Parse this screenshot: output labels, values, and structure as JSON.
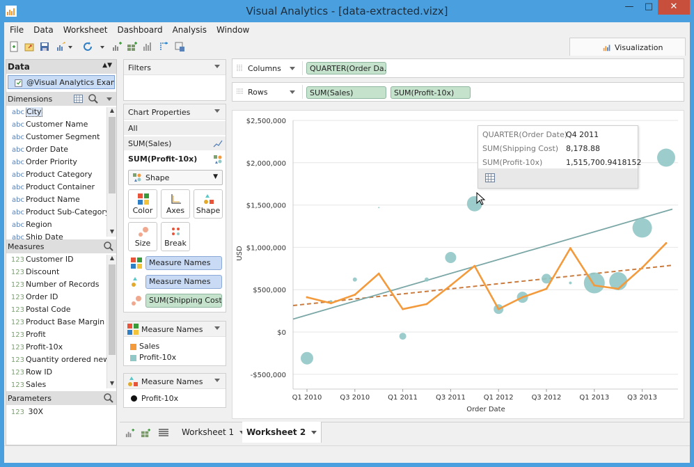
{
  "window": {
    "title": "Visual Analytics - [data-extracted.vizx]"
  },
  "menu": [
    "File",
    "Data",
    "Worksheet",
    "Dashboard",
    "Analysis",
    "Window"
  ],
  "visualization_tab": "Visualization",
  "data_panel": {
    "header": "Data",
    "source": "@Visual Analytics Exam...",
    "dimensions_label": "Dimensions",
    "dimensions": [
      {
        "type": "abc",
        "name": "City"
      },
      {
        "type": "abc",
        "name": "Customer Name"
      },
      {
        "type": "abc",
        "name": "Customer Segment"
      },
      {
        "type": "abc",
        "name": "Order Date"
      },
      {
        "type": "abc",
        "name": "Order Priority"
      },
      {
        "type": "abc",
        "name": "Product Category"
      },
      {
        "type": "abc",
        "name": "Product Container"
      },
      {
        "type": "abc",
        "name": "Product Name"
      },
      {
        "type": "abc",
        "name": "Product Sub-Category"
      },
      {
        "type": "abc",
        "name": "Region"
      },
      {
        "type": "abc",
        "name": "Ship Date"
      }
    ],
    "measures_label": "Measures",
    "measures": [
      {
        "type": "123",
        "name": "Customer ID"
      },
      {
        "type": "123",
        "name": "Discount"
      },
      {
        "type": "123",
        "name": "Number of Records"
      },
      {
        "type": "123",
        "name": "Order ID"
      },
      {
        "type": "123",
        "name": "Postal Code"
      },
      {
        "type": "123",
        "name": "Product Base Margin"
      },
      {
        "type": "123",
        "name": "Profit"
      },
      {
        "type": "123",
        "name": "Profit-10x"
      },
      {
        "type": "123",
        "name": "Quantity ordered new"
      },
      {
        "type": "123",
        "name": "Row ID"
      },
      {
        "type": "123",
        "name": "Sales"
      }
    ],
    "parameters_label": "Parameters",
    "parameters": [
      {
        "type": "123",
        "name": "30X"
      }
    ]
  },
  "filters": {
    "header": "Filters"
  },
  "chart_properties": {
    "header": "Chart Properties",
    "items": [
      "All",
      "SUM(Sales)",
      "SUM(Profit-10x)"
    ],
    "mark_type": "Shape",
    "buttons": [
      "Color",
      "Axes",
      "Shape",
      "Size",
      "Break"
    ],
    "encodings": [
      "Measure Names",
      "Measure Names",
      "SUM(Shipping Cost)"
    ]
  },
  "color_legend": {
    "header": "Measure Names",
    "items": [
      {
        "label": "Sales",
        "color": "#f39a3c"
      },
      {
        "label": "Profit-10x",
        "color": "#91c8c7"
      }
    ]
  },
  "shape_legend": {
    "header": "Measure Names",
    "items": [
      {
        "label": "Profit-10x"
      }
    ]
  },
  "shelves": {
    "columns_label": "Columns",
    "columns_pill": "QUARTER(Order Da...",
    "rows_label": "Rows",
    "rows_pills": [
      "SUM(Sales)",
      "SUM(Profit-10x)"
    ]
  },
  "tooltip": {
    "rows": [
      {
        "key": "QUARTER(Order Date)",
        "value": "Q4 2011"
      },
      {
        "key": "SUM(Shipping Cost)",
        "value": "8,178.88"
      },
      {
        "key": "SUM(Profit-10x)",
        "value": "1,515,700.9418152"
      }
    ]
  },
  "worksheets": {
    "tabs": [
      "Worksheet 1",
      "Worksheet 2"
    ],
    "active": 1
  },
  "chart_data": {
    "type": "line",
    "xlabel": "Order Date",
    "ylabel": "USD",
    "categories": [
      "Q1 2010",
      "Q2 2010",
      "Q3 2010",
      "Q4 2010",
      "Q1 2011",
      "Q2 2011",
      "Q3 2011",
      "Q4 2011",
      "Q1 2012",
      "Q2 2012",
      "Q3 2012",
      "Q4 2012",
      "Q1 2013",
      "Q2 2013",
      "Q3 2013",
      "Q4 2013"
    ],
    "tick_labels": [
      "Q1 2010",
      "Q3 2010",
      "Q1 2011",
      "Q3 2011",
      "Q1 2012",
      "Q3 2012",
      "Q1 2013",
      "Q3 2013"
    ],
    "y_ticks": [
      -500000,
      0,
      500000,
      1000000,
      1500000,
      2000000,
      2500000
    ],
    "y_tick_labels": [
      "-$500,000",
      "$0",
      "$500,000",
      "$1,000,000",
      "$1,500,000",
      "$2,000,000",
      "$2,500,000"
    ],
    "ylim": [
      -600000,
      2500000
    ],
    "series": [
      {
        "name": "Sales",
        "mark": "line",
        "color": "#f39a3c",
        "values": [
          410000,
          340000,
          440000,
          690000,
          270000,
          330000,
          550000,
          780000,
          270000,
          410000,
          510000,
          990000,
          550000,
          510000,
          760000,
          1050000
        ]
      },
      {
        "name": "Profit-10x",
        "mark": "circle",
        "color": "#91c8c7",
        "values": [
          -310000,
          360000,
          620000,
          1470000,
          -50000,
          620000,
          880000,
          1515700,
          270000,
          410000,
          630000,
          580000,
          580000,
          600000,
          1230000,
          2060000
        ],
        "sizes": [
          9,
          2,
          3,
          1,
          5,
          3,
          8,
          11,
          7,
          8,
          7,
          2,
          15,
          13,
          14,
          13
        ]
      }
    ],
    "trend_lines": [
      {
        "series": "Sales",
        "style": "dashed",
        "color": "#c97a3c",
        "start": 330000,
        "end": 780000
      },
      {
        "series": "Profit-10x",
        "style": "solid",
        "color": "#7aa7a6",
        "start": 200000,
        "end": 1430000
      }
    ]
  }
}
